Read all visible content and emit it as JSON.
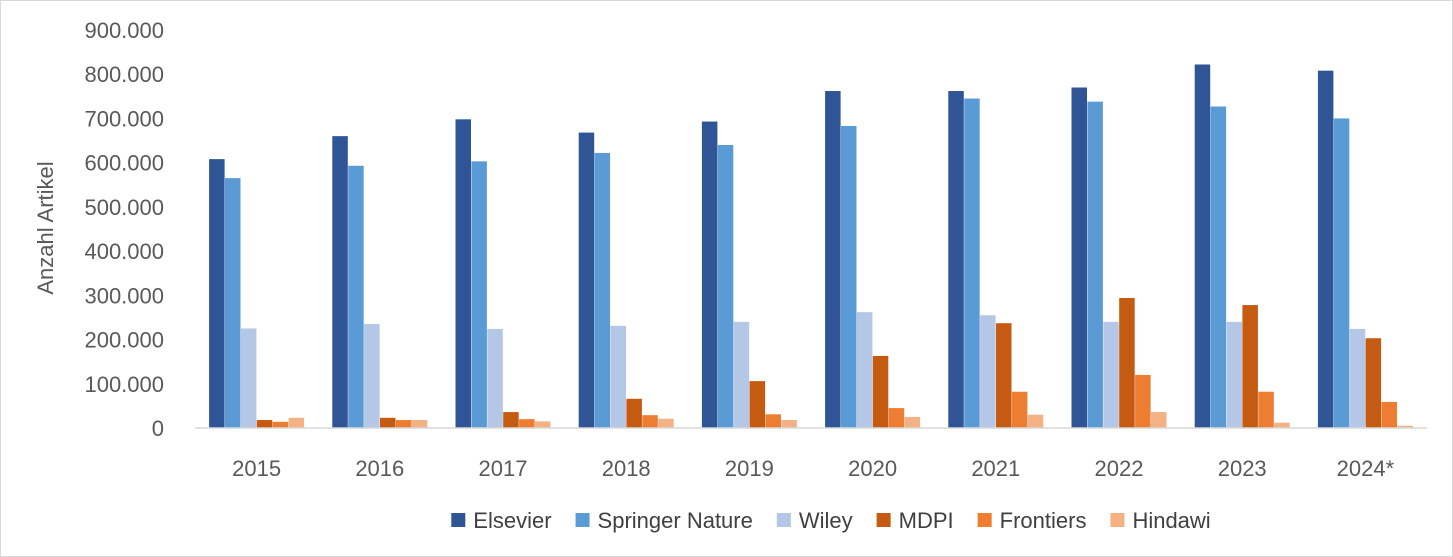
{
  "chart_data": {
    "type": "bar",
    "title": "",
    "xlabel": "",
    "ylabel": "Anzahl Artikel",
    "ylim": [
      0,
      900000
    ],
    "y_ticks": [
      0,
      100000,
      200000,
      300000,
      400000,
      500000,
      600000,
      700000,
      800000,
      900000
    ],
    "y_tick_labels": [
      "0",
      "100.000",
      "200.000",
      "300.000",
      "400.000",
      "500.000",
      "600.000",
      "700.000",
      "800.000",
      "900.000"
    ],
    "grid": false,
    "legend_position": "bottom",
    "categories": [
      "2015",
      "2016",
      "2017",
      "2018",
      "2019",
      "2020",
      "2021",
      "2022",
      "2023",
      "2024*"
    ],
    "series": [
      {
        "name": "Elsevier",
        "color": "#2f5597",
        "values": [
          608000,
          660000,
          698000,
          668000,
          693000,
          762000,
          762000,
          770000,
          822000,
          808000
        ]
      },
      {
        "name": "Springer Nature",
        "color": "#5b9bd5",
        "values": [
          565000,
          593000,
          603000,
          622000,
          640000,
          683000,
          745000,
          738000,
          727000,
          700000
        ]
      },
      {
        "name": "Wiley",
        "color": "#b4c7e7",
        "values": [
          225000,
          235000,
          224000,
          231000,
          240000,
          262000,
          255000,
          240000,
          240000,
          224000
        ]
      },
      {
        "name": "MDPI",
        "color": "#c55a11",
        "values": [
          18000,
          23000,
          36000,
          66000,
          106000,
          163000,
          237000,
          294000,
          278000,
          203000
        ]
      },
      {
        "name": "Frontiers",
        "color": "#ed7d31",
        "values": [
          14000,
          18000,
          20000,
          29000,
          31000,
          45000,
          82000,
          120000,
          82000,
          59000
        ]
      },
      {
        "name": "Hindawi",
        "color": "#f4b183",
        "values": [
          23000,
          18000,
          15000,
          21000,
          18000,
          25000,
          30000,
          36000,
          12000,
          5000
        ]
      }
    ]
  }
}
